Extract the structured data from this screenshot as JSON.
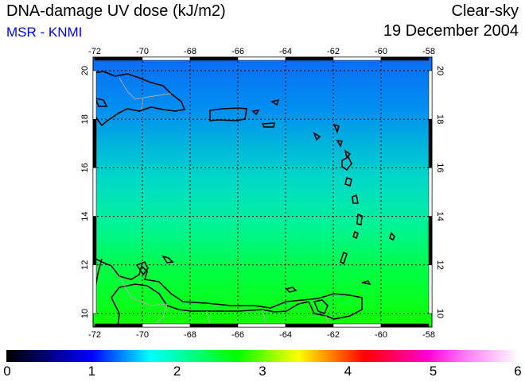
{
  "header": {
    "title": "DNA-damage UV dose (kJ/m2)",
    "source": "MSR - KNMI",
    "condition": "Clear-sky",
    "date": "19 December 2004"
  },
  "map": {
    "lon_ticks": [
      "-72",
      "-70",
      "-68",
      "-66",
      "-64",
      "-62",
      "-60",
      "-58"
    ],
    "lat_ticks": [
      "20",
      "18",
      "16",
      "14",
      "12",
      "10"
    ],
    "lon_range": [
      -72,
      -58
    ],
    "lat_range": [
      9.5,
      20.5
    ],
    "field_colors": {
      "north": "#0a6cf5",
      "mid": "#00e8b0",
      "south": "#00ff10"
    }
  },
  "colorbar": {
    "labels": [
      "0",
      "1",
      "2",
      "3",
      "4",
      "5",
      "6"
    ],
    "range": [
      0,
      6
    ]
  }
}
